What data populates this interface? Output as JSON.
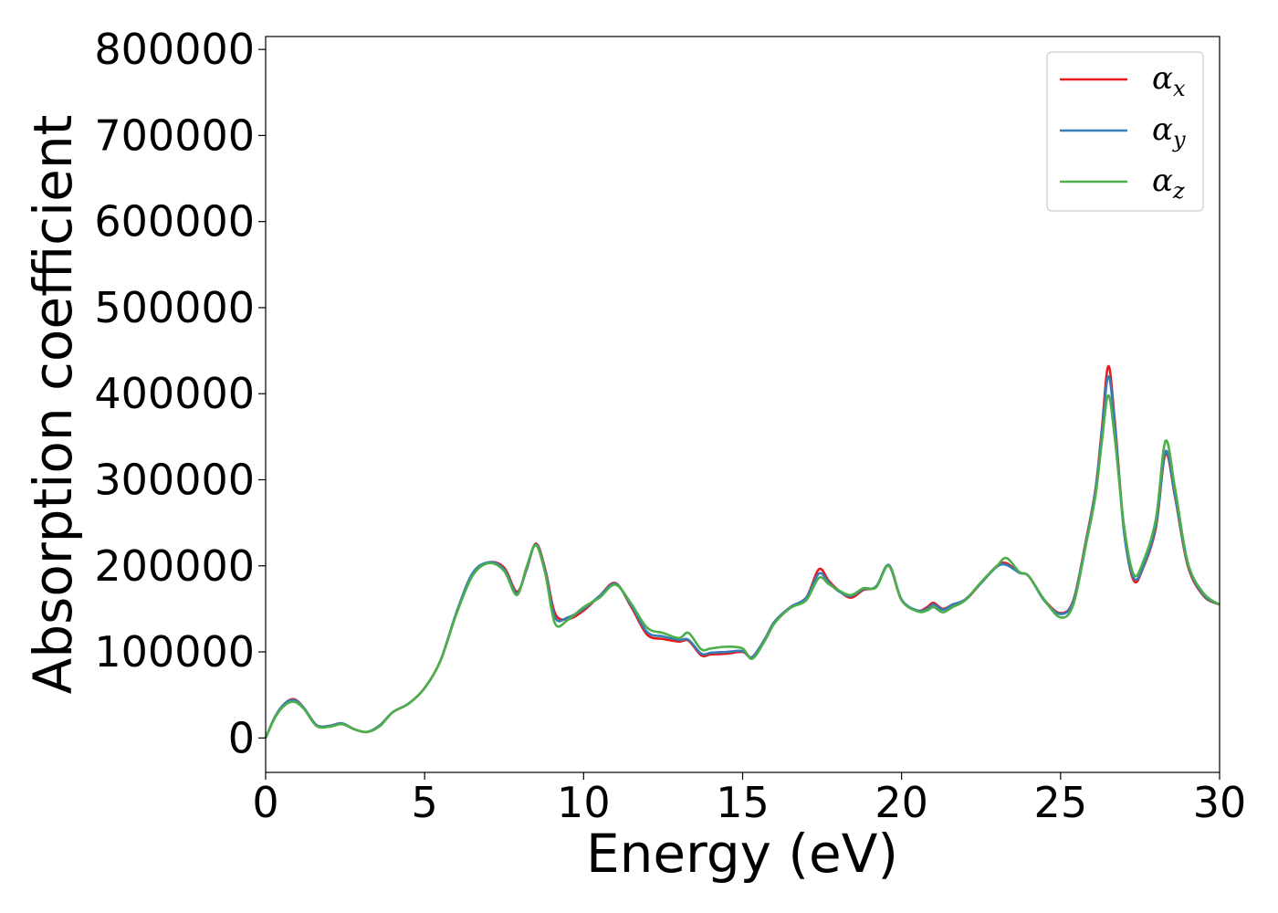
{
  "chart_data": {
    "type": "line",
    "title": "",
    "xlabel": "Energy (eV)",
    "ylabel": "Absorption coefficient",
    "xlim": [
      0,
      30
    ],
    "ylim": [
      -40000,
      815000
    ],
    "xticks": [
      0,
      5,
      10,
      15,
      20,
      25,
      30
    ],
    "yticks": [
      0,
      100000,
      200000,
      300000,
      400000,
      500000,
      600000,
      700000,
      800000
    ],
    "grid": false,
    "legend_position": "top-right",
    "series": [
      {
        "name": "α_x",
        "label_main": "α",
        "label_sub": "x",
        "color": "#e41a1c",
        "x": [
          0,
          0.3,
          0.6,
          0.9,
          1.2,
          1.6,
          2.0,
          2.4,
          2.8,
          3.2,
          3.6,
          4.0,
          4.5,
          5.0,
          5.5,
          6.0,
          6.5,
          7.0,
          7.5,
          7.9,
          8.2,
          8.5,
          8.8,
          9.1,
          9.5,
          10.0,
          10.5,
          11.0,
          11.5,
          12.0,
          12.5,
          13.0,
          13.3,
          13.7,
          14.0,
          14.5,
          15.0,
          15.3,
          15.7,
          16.0,
          16.5,
          17.0,
          17.4,
          17.7,
          18.0,
          18.4,
          18.8,
          19.2,
          19.6,
          20.0,
          20.5,
          20.8,
          21.0,
          21.3,
          21.6,
          22.0,
          22.5,
          23.0,
          23.3,
          23.7,
          24.0,
          24.5,
          25.0,
          25.4,
          25.8,
          26.1,
          26.3,
          26.5,
          26.7,
          27.0,
          27.3,
          27.6,
          28.0,
          28.3,
          28.6,
          29.0,
          29.5,
          30.0
        ],
        "values": [
          0,
          25000,
          40000,
          45000,
          35000,
          15000,
          14000,
          17000,
          10000,
          7000,
          15000,
          30000,
          40000,
          58000,
          90000,
          145000,
          190000,
          204000,
          198000,
          170000,
          195000,
          226000,
          195000,
          145000,
          138000,
          148000,
          165000,
          180000,
          152000,
          120000,
          115000,
          112000,
          113000,
          96000,
          97000,
          98000,
          100000,
          94000,
          115000,
          135000,
          152000,
          163000,
          196000,
          183000,
          172000,
          163000,
          172000,
          176000,
          200000,
          160000,
          148000,
          152000,
          157000,
          150000,
          155000,
          160000,
          180000,
          200000,
          203000,
          192000,
          188000,
          160000,
          145000,
          160000,
          230000,
          290000,
          360000,
          432000,
          370000,
          240000,
          183000,
          198000,
          245000,
          330000,
          280000,
          200000,
          165000,
          155000
        ]
      },
      {
        "name": "α_y",
        "label_main": "α",
        "label_sub": "y",
        "color": "#377eb8",
        "x": [
          0,
          0.3,
          0.6,
          0.9,
          1.2,
          1.6,
          2.0,
          2.4,
          2.8,
          3.2,
          3.6,
          4.0,
          4.5,
          5.0,
          5.5,
          6.0,
          6.5,
          7.0,
          7.5,
          7.9,
          8.2,
          8.5,
          8.8,
          9.1,
          9.5,
          10.0,
          10.5,
          11.0,
          11.5,
          12.0,
          12.5,
          13.0,
          13.3,
          13.7,
          14.0,
          14.5,
          15.0,
          15.3,
          15.7,
          16.0,
          16.5,
          17.0,
          17.4,
          17.7,
          18.0,
          18.4,
          18.8,
          19.2,
          19.6,
          20.0,
          20.5,
          20.8,
          21.0,
          21.3,
          21.6,
          22.0,
          22.5,
          23.0,
          23.3,
          23.7,
          24.0,
          24.5,
          25.0,
          25.4,
          25.8,
          26.1,
          26.3,
          26.5,
          26.7,
          27.0,
          27.3,
          27.6,
          28.0,
          28.3,
          28.6,
          29.0,
          29.5,
          30.0
        ],
        "values": [
          0,
          25000,
          40000,
          44000,
          35000,
          15000,
          14000,
          17000,
          10000,
          7000,
          15000,
          30000,
          40000,
          58000,
          90000,
          146000,
          191000,
          204000,
          196000,
          168000,
          196000,
          225000,
          193000,
          140000,
          140000,
          150000,
          165000,
          179000,
          154000,
          123000,
          118000,
          114000,
          114000,
          98000,
          99000,
          100000,
          101000,
          94000,
          115000,
          135000,
          152000,
          163000,
          191000,
          181000,
          171000,
          165000,
          173000,
          176000,
          201000,
          161000,
          148000,
          150000,
          155000,
          149000,
          155000,
          161000,
          180000,
          199000,
          201000,
          192000,
          188000,
          159000,
          144000,
          159000,
          228000,
          288000,
          355000,
          420000,
          365000,
          238000,
          186000,
          199000,
          248000,
          333000,
          282000,
          202000,
          166000,
          155000
        ]
      },
      {
        "name": "α_z",
        "label_main": "α",
        "label_sub": "z",
        "color": "#4daf4a",
        "x": [
          0,
          0.3,
          0.6,
          0.9,
          1.2,
          1.6,
          2.0,
          2.4,
          2.8,
          3.2,
          3.6,
          4.0,
          4.5,
          5.0,
          5.5,
          6.0,
          6.5,
          7.0,
          7.5,
          7.9,
          8.2,
          8.5,
          8.8,
          9.1,
          9.5,
          10.0,
          10.5,
          11.0,
          11.5,
          12.0,
          12.5,
          13.0,
          13.3,
          13.7,
          14.0,
          14.5,
          15.0,
          15.3,
          15.7,
          16.0,
          16.5,
          17.0,
          17.4,
          17.7,
          18.0,
          18.4,
          18.8,
          19.2,
          19.6,
          20.0,
          20.5,
          20.8,
          21.0,
          21.3,
          21.6,
          22.0,
          22.5,
          23.0,
          23.3,
          23.7,
          24.0,
          24.5,
          25.0,
          25.4,
          25.8,
          26.1,
          26.3,
          26.5,
          26.7,
          27.0,
          27.3,
          27.6,
          28.0,
          28.3,
          28.6,
          29.0,
          29.5,
          30.0
        ],
        "values": [
          0,
          24000,
          38000,
          42000,
          34000,
          14000,
          13000,
          16000,
          10000,
          7000,
          14000,
          30000,
          40000,
          58000,
          90000,
          144000,
          188000,
          203000,
          194000,
          166000,
          198000,
          224000,
          190000,
          133000,
          137000,
          152000,
          163000,
          178000,
          156000,
          128000,
          122000,
          116000,
          122000,
          103000,
          104000,
          106000,
          104000,
          92000,
          113000,
          133000,
          151000,
          160000,
          186000,
          179000,
          172000,
          166000,
          174000,
          175000,
          200000,
          160000,
          147000,
          148000,
          152000,
          146000,
          152000,
          160000,
          181000,
          200000,
          209000,
          193000,
          188000,
          160000,
          140000,
          155000,
          225000,
          282000,
          345000,
          398000,
          350000,
          245000,
          190000,
          205000,
          255000,
          345000,
          290000,
          204000,
          168000,
          155000
        ]
      }
    ]
  }
}
